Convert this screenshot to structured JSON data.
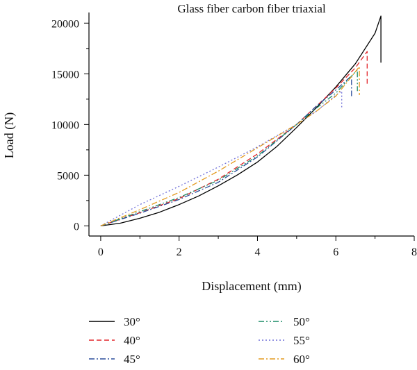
{
  "chart_data": {
    "type": "line",
    "title": "Glass fiber carbon fiber triaxial",
    "xlabel": "Displacement (mm)",
    "ylabel": "Load (N)",
    "xlim": [
      -0.3,
      8
    ],
    "ylim": [
      -1000,
      20500
    ],
    "xticks": [
      0,
      2,
      4,
      6,
      8
    ],
    "yticks": [
      0,
      5000,
      10000,
      15000,
      20000
    ],
    "grid": false,
    "legend_position": "bottom",
    "series": [
      {
        "name": "30°",
        "color": "#000000",
        "dash": "solid",
        "x": [
          0,
          0.5,
          1,
          1.5,
          2,
          2.5,
          3,
          3.5,
          4,
          4.5,
          5,
          5.5,
          6,
          6.5,
          7,
          7.15,
          7.15
        ],
        "y": [
          0,
          270,
          750,
          1350,
          2100,
          2950,
          3950,
          5050,
          6300,
          7850,
          9700,
          11650,
          13700,
          16000,
          19000,
          20700,
          16100
        ]
      },
      {
        "name": "40°",
        "color": "#e3262b",
        "dash": "dashed",
        "x": [
          0,
          1,
          2,
          3,
          4,
          5,
          5.5,
          6,
          6.5,
          6.8,
          6.8
        ],
        "y": [
          0,
          1300,
          2700,
          4600,
          7100,
          10000,
          11800,
          13600,
          15600,
          17200,
          13800
        ]
      },
      {
        "name": "45°",
        "color": "#2a4d9b",
        "dash": "dashdot",
        "x": [
          0,
          1,
          2,
          3,
          4,
          5,
          5.5,
          6,
          6.4,
          6.4
        ],
        "y": [
          0,
          1250,
          2600,
          4300,
          6800,
          10000,
          11800,
          13400,
          14800,
          12700
        ]
      },
      {
        "name": "50°",
        "color": "#1a8c66",
        "dash": "dashdotdot",
        "x": [
          0,
          1,
          2,
          3,
          4,
          5,
          5.5,
          6,
          6.55,
          6.55
        ],
        "y": [
          0,
          1400,
          2800,
          4500,
          6900,
          10000,
          11600,
          13100,
          15400,
          13300
        ]
      },
      {
        "name": "55°",
        "color": "#7070d8",
        "dash": "dotted",
        "x": [
          0,
          1,
          2,
          3,
          4,
          5,
          5.5,
          6,
          6.15,
          6.15
        ],
        "y": [
          0,
          2100,
          3900,
          5800,
          7800,
          10000,
          11300,
          12900,
          13300,
          11700
        ]
      },
      {
        "name": "60°",
        "color": "#e39a1f",
        "dash": "dashdot",
        "x": [
          0,
          1,
          2,
          3,
          4,
          5,
          5.5,
          6,
          6.6,
          6.6
        ],
        "y": [
          0,
          1600,
          3300,
          5400,
          7700,
          10000,
          11300,
          12800,
          15700,
          12900
        ]
      }
    ]
  }
}
